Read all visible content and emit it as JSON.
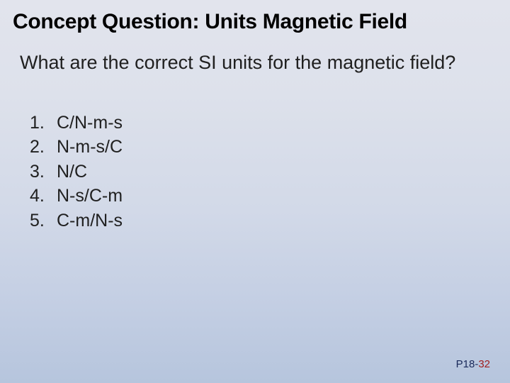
{
  "title": {
    "text": "Concept Question: Units Magnetic Field",
    "fontsize": 30,
    "color": "#000000"
  },
  "question": {
    "text": "What are the correct SI units for the magnetic field?",
    "fontsize": 27,
    "color": "#202020"
  },
  "options": {
    "fontsize": 25,
    "color": "#202020",
    "items": [
      {
        "num": "1.",
        "label": "C/N-m-s"
      },
      {
        "num": "2.",
        "label": "N-m-s/C"
      },
      {
        "num": "3.",
        "label": "N/C"
      },
      {
        "num": "4.",
        "label": "N-s/C-m"
      },
      {
        "num": "5.",
        "label": "C-m/N-s"
      }
    ]
  },
  "footer": {
    "prefix": "P18-",
    "page": "32",
    "fontsize": 15,
    "prefix_color": "#1a2a5a",
    "page_color": "#a02020"
  },
  "background": {
    "gradient_top": "#e2e4ed",
    "gradient_bottom": "#b6c5dd"
  }
}
